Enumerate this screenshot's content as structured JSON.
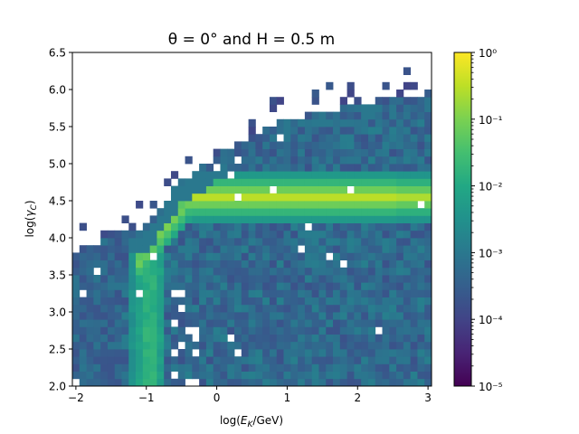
{
  "chart_data": {
    "type": "heatmap",
    "title": "θ = 0° and H = 0.5 m",
    "xlabel": "log(E_K/GeV)",
    "ylabel": "log(γ_C)",
    "xlim": [
      -2.05,
      3.05
    ],
    "ylim": [
      2.0,
      6.5
    ],
    "x_ticks": [
      -2,
      -1,
      0,
      1,
      2,
      3
    ],
    "x_tick_labels": [
      "−2",
      "−1",
      "0",
      "1",
      "2",
      "3"
    ],
    "y_ticks": [
      2.0,
      2.5,
      3.0,
      3.5,
      4.0,
      4.5,
      5.0,
      5.5,
      6.0,
      6.5
    ],
    "y_tick_labels": [
      "2.0",
      "2.5",
      "3.0",
      "3.5",
      "4.0",
      "4.5",
      "5.0",
      "5.5",
      "6.0",
      "6.5"
    ],
    "colorscale": "viridis",
    "color_scale_type": "log",
    "colorbar_range": [
      1e-05,
      1
    ],
    "colorbar_ticks": [
      1e-05,
      0.0001,
      0.001,
      0.01,
      0.1,
      1
    ],
    "colorbar_tick_labels": [
      "10⁻⁵",
      "10⁻⁴",
      "10⁻³",
      "10⁻²",
      "10⁻¹",
      "10⁰"
    ],
    "x_bin_width": 0.1,
    "y_bin_width": 0.1,
    "features": [
      {
        "description": "bright horizontal band",
        "x_range": [
          -0.4,
          3.05
        ],
        "y_center": 4.55,
        "peak_value": 0.3
      },
      {
        "description": "rising diagonal ridge",
        "from": [
          -1.0,
          3.8
        ],
        "to": [
          -0.4,
          4.5
        ],
        "peak_value": 0.1
      },
      {
        "description": "vertical column",
        "x_center": -0.95,
        "y_range": [
          2.0,
          4.0
        ],
        "peak_value": 0.03
      },
      {
        "description": "upper envelope of populated region",
        "points": [
          [
            -2.0,
            3.85
          ],
          [
            -1.0,
            4.1
          ],
          [
            -0.5,
            4.75
          ],
          [
            0.0,
            5.05
          ],
          [
            0.5,
            5.35
          ],
          [
            1.0,
            5.55
          ],
          [
            1.5,
            5.65
          ],
          [
            2.0,
            5.75
          ],
          [
            3.0,
            5.9
          ]
        ]
      }
    ]
  }
}
